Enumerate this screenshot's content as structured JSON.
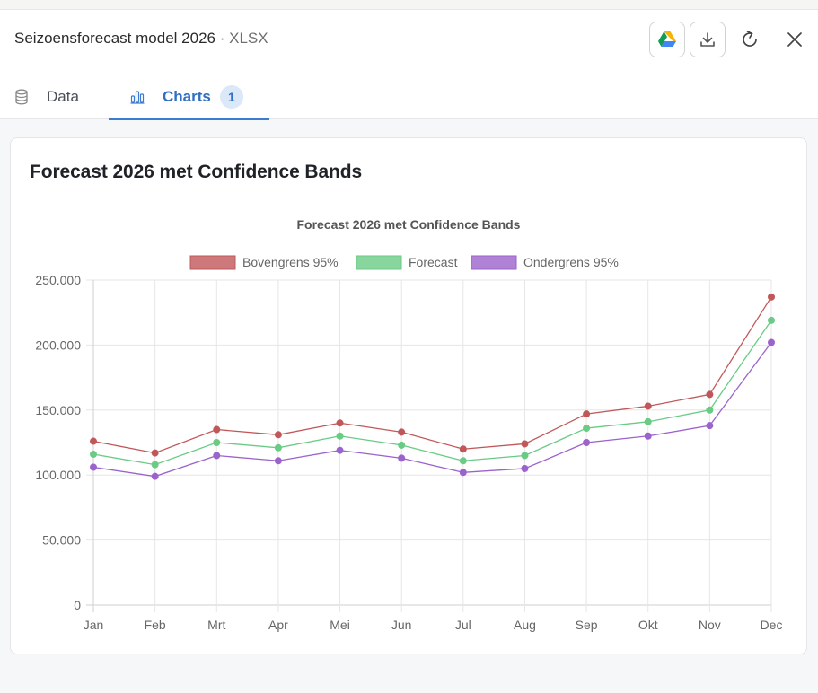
{
  "window": {
    "title": "Seizoensforecast model 2026",
    "separator": "·",
    "file_type": "XLSX"
  },
  "toolbar": {
    "drive_icon": "google-drive-icon",
    "download_icon": "download-icon",
    "refresh_icon": "refresh-icon",
    "close_icon": "close-icon"
  },
  "tabs": [
    {
      "label": "Data",
      "icon": "database-icon",
      "active": false
    },
    {
      "label": "Charts",
      "icon": "bar-chart-icon",
      "active": true,
      "count": "1"
    }
  ],
  "card": {
    "title": "Forecast 2026 met Confidence Bands"
  },
  "chart_data": {
    "type": "line",
    "title": "Forecast 2026 met Confidence Bands",
    "categories": [
      "Jan",
      "Feb",
      "Mrt",
      "Apr",
      "Mei",
      "Jun",
      "Jul",
      "Aug",
      "Sep",
      "Okt",
      "Nov",
      "Dec"
    ],
    "series": [
      {
        "name": "Bovengrens 95%",
        "color": "#c0585a",
        "values": [
          126000,
          117000,
          135000,
          131000,
          140000,
          133000,
          120000,
          124000,
          147000,
          153000,
          162000,
          237000
        ]
      },
      {
        "name": "Forecast",
        "color": "#6acb85",
        "values": [
          116000,
          108000,
          125000,
          121000,
          130000,
          123000,
          111000,
          115000,
          136000,
          141000,
          150000,
          219000
        ]
      },
      {
        "name": "Ondergrens 95%",
        "color": "#9b63cc",
        "values": [
          106000,
          99000,
          115000,
          111000,
          119000,
          113000,
          102000,
          105000,
          125000,
          130000,
          138000,
          202000
        ]
      }
    ],
    "ylim": [
      0,
      250000
    ],
    "yticks": [
      "0",
      "50.000",
      "100.000",
      "150.000",
      "200.000",
      "250.000"
    ],
    "ytick_values": [
      0,
      50000,
      100000,
      150000,
      200000,
      250000
    ],
    "grid": true,
    "legend": "top"
  }
}
